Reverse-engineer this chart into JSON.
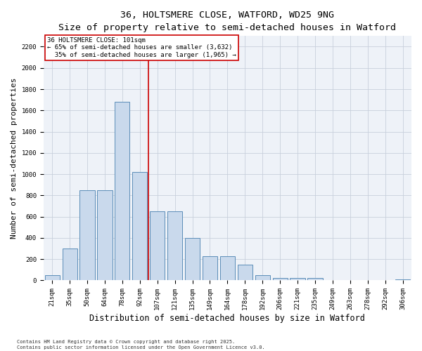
{
  "title_line1": "36, HOLTSMERE CLOSE, WATFORD, WD25 9NG",
  "title_line2": "Size of property relative to semi-detached houses in Watford",
  "xlabel": "Distribution of semi-detached houses by size in Watford",
  "ylabel": "Number of semi-detached properties",
  "categories": [
    "21sqm",
    "35sqm",
    "50sqm",
    "64sqm",
    "78sqm",
    "92sqm",
    "107sqm",
    "121sqm",
    "135sqm",
    "149sqm",
    "164sqm",
    "178sqm",
    "192sqm",
    "206sqm",
    "221sqm",
    "235sqm",
    "249sqm",
    "263sqm",
    "278sqm",
    "292sqm",
    "306sqm"
  ],
  "values": [
    50,
    300,
    850,
    850,
    1680,
    1020,
    650,
    650,
    400,
    230,
    230,
    150,
    50,
    25,
    25,
    20,
    3,
    3,
    3,
    3,
    10
  ],
  "bar_color": "#c9d9ec",
  "bar_edge_color": "#5b8db8",
  "grid_color": "#c8d0dc",
  "background_color": "#eef2f8",
  "vline_color": "#cc0000",
  "annotation_text": "36 HOLTSMERE CLOSE: 101sqm\n← 65% of semi-detached houses are smaller (3,632)\n  35% of semi-detached houses are larger (1,965) →",
  "annotation_box_color": "#cc0000",
  "ylim": [
    0,
    2300
  ],
  "yticks": [
    0,
    200,
    400,
    600,
    800,
    1000,
    1200,
    1400,
    1600,
    1800,
    2000,
    2200
  ],
  "footer": "Contains HM Land Registry data © Crown copyright and database right 2025.\nContains public sector information licensed under the Open Government Licence v3.0.",
  "title_fontsize": 9.5,
  "subtitle_fontsize": 8.5,
  "axis_label_fontsize": 8,
  "tick_fontsize": 6.5,
  "annotation_fontsize": 6.5,
  "footer_fontsize": 5
}
